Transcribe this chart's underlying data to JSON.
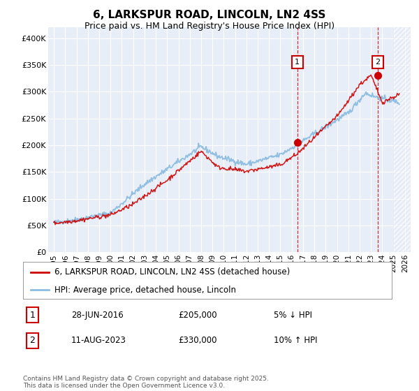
{
  "title": "6, LARKSPUR ROAD, LINCOLN, LN2 4SS",
  "subtitle": "Price paid vs. HM Land Registry's House Price Index (HPI)",
  "hpi_label": "HPI: Average price, detached house, Lincoln",
  "property_label": "6, LARKSPUR ROAD, LINCOLN, LN2 4SS (detached house)",
  "footnote": "Contains HM Land Registry data © Crown copyright and database right 2025.\nThis data is licensed under the Open Government Licence v3.0.",
  "annotation1": {
    "num": "1",
    "date": "28-JUN-2016",
    "price": "£205,000",
    "hpi_note": "5% ↓ HPI",
    "x_year": 2016.5,
    "y_marker": 205000
  },
  "annotation2": {
    "num": "2",
    "date": "11-AUG-2023",
    "price": "£330,000",
    "hpi_note": "10% ↑ HPI",
    "x_year": 2023.6,
    "y_marker": 330000
  },
  "ylim": [
    0,
    420000
  ],
  "xlim_start": 1994.5,
  "xlim_end": 2026.5,
  "yticks": [
    0,
    50000,
    100000,
    150000,
    200000,
    250000,
    300000,
    350000,
    400000
  ],
  "ytick_labels": [
    "£0",
    "£50K",
    "£100K",
    "£150K",
    "£200K",
    "£250K",
    "£300K",
    "£350K",
    "£400K"
  ],
  "bg_color": "#e8eef7",
  "grid_color": "#ffffff",
  "hpi_color": "#8bbde0",
  "property_color": "#cc0000",
  "vline_color": "#cc0000",
  "marker_color": "#cc0000",
  "hatch_color": "#d0d8e8",
  "ann_box_color": "#cc0000"
}
